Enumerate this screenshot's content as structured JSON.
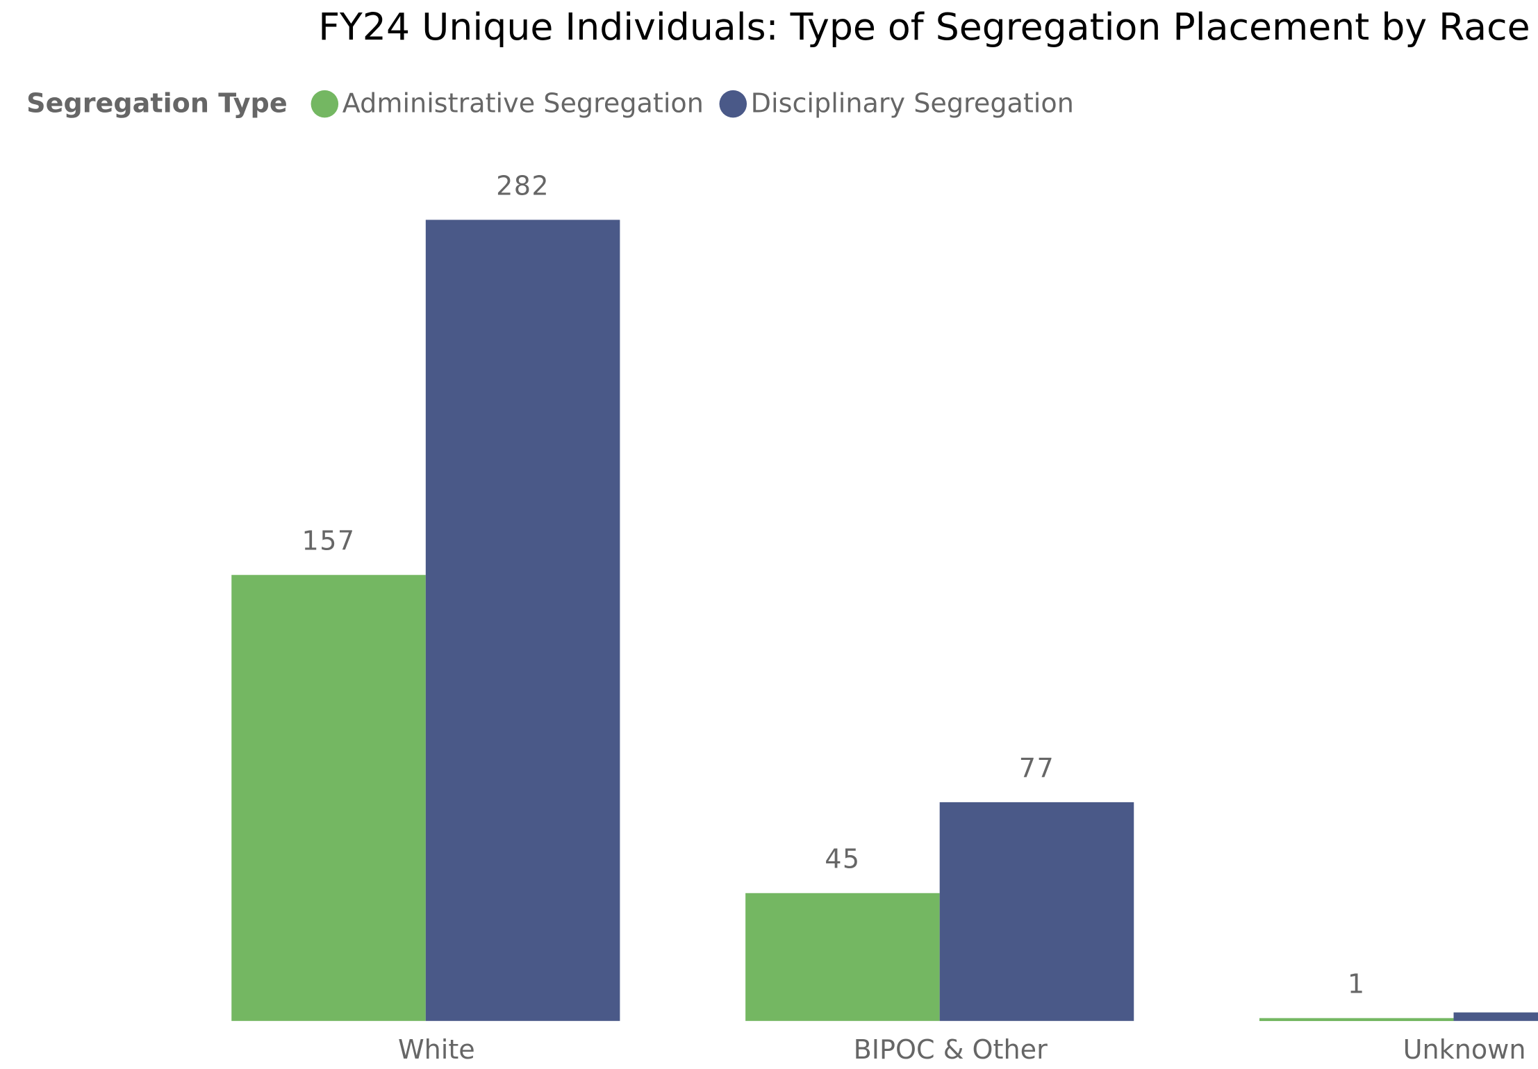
{
  "chart_data": {
    "type": "bar",
    "title": "FY24 Unique Individuals: Type of Segregation Placement by Race",
    "legend_title": "Segregation Type",
    "categories": [
      "White",
      "BIPOC & Other",
      "Unknown"
    ],
    "series": [
      {
        "name": "Administrative Segregation",
        "color": "#74b762",
        "values": [
          157,
          45,
          1
        ]
      },
      {
        "name": "Disciplinary Segregation",
        "color": "#4a5988",
        "values": [
          282,
          77,
          3
        ]
      }
    ],
    "ylim": [
      0,
      300
    ],
    "grid": false,
    "legend": "top-left"
  }
}
